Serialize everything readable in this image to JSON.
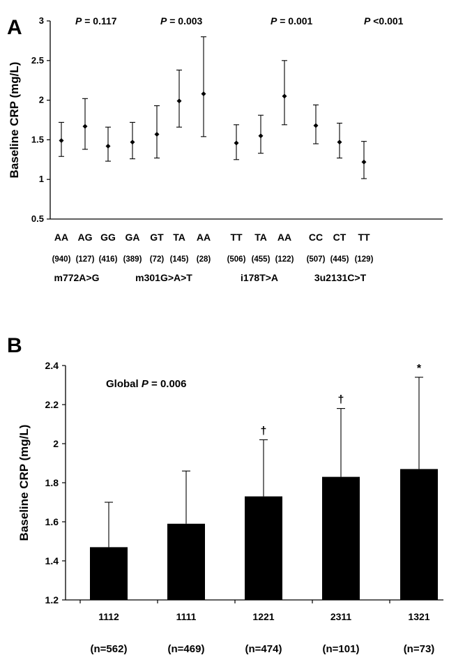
{
  "panel_a": {
    "letter": "A",
    "p_values": [
      {
        "label": "P",
        "text": " = 0.117"
      },
      {
        "label": "P",
        "text": " = 0.003"
      },
      {
        "label": "P",
        "text": " = 0.001"
      },
      {
        "label": "P",
        "text": " <0.001"
      }
    ],
    "groups": [
      "m772A>G",
      "m301G>A>T",
      "i178T>A",
      "3u2131C>T"
    ]
  },
  "panel_b": {
    "letter": "B",
    "global_p": {
      "prefix": "Global ",
      "label": "P",
      "text": " = 0.006"
    }
  },
  "chart_data": [
    {
      "type": "scatter",
      "ylabel": "Baseline CRP (mg/L)",
      "ylim": [
        0.5,
        3
      ],
      "yticks": [
        0.5,
        1,
        1.5,
        2,
        2.5,
        3
      ],
      "error_bars": true,
      "categories": [
        "AA",
        "AG",
        "GG",
        "GA",
        "GT",
        "TA",
        "AA",
        "TT",
        "TA",
        "AA",
        "CC",
        "CT",
        "TT"
      ],
      "counts": [
        "(940)",
        "(127)",
        "(416)",
        "(389)",
        "(72)",
        "(145)",
        "(28)",
        "(506)",
        "(455)",
        "(122)",
        "(507)",
        "(445)",
        "(129)"
      ],
      "values": [
        1.49,
        1.67,
        1.42,
        1.47,
        1.57,
        1.99,
        2.08,
        1.46,
        1.55,
        2.05,
        1.68,
        1.47,
        1.22
      ],
      "lower": [
        1.29,
        1.38,
        1.23,
        1.26,
        1.27,
        1.66,
        1.54,
        1.25,
        1.33,
        1.69,
        1.45,
        1.27,
        1.01
      ],
      "upper": [
        1.72,
        2.02,
        1.66,
        1.72,
        1.93,
        2.38,
        2.8,
        1.69,
        1.81,
        2.5,
        1.94,
        1.71,
        1.48
      ]
    },
    {
      "type": "bar",
      "ylabel": "Baseline CRP (mg/L)",
      "ylim": [
        1.2,
        2.4
      ],
      "yticks": [
        1.2,
        1.4,
        1.6,
        1.8,
        2.0,
        2.2,
        2.4
      ],
      "ytick_labels": [
        "1.2",
        "1.4",
        "1.6",
        "1.8",
        "2",
        "2.2",
        "2.4"
      ],
      "categories": [
        "1112",
        "1111",
        "1221",
        "2311",
        "1321"
      ],
      "counts": [
        "(n=562)",
        "(n=469)",
        "(n=474)",
        "(n=101)",
        "(n=73)"
      ],
      "values": [
        1.47,
        1.59,
        1.73,
        1.83,
        1.87
      ],
      "error_upper": [
        1.7,
        1.86,
        2.02,
        2.18,
        2.34
      ],
      "markers": [
        "",
        "",
        "†",
        "†",
        "*"
      ]
    }
  ]
}
